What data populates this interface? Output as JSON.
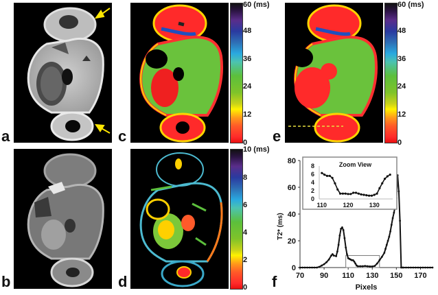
{
  "figure": {
    "panels": [
      {
        "label": "a",
        "type": "grayscale-mri",
        "annotation": "two yellow arrows"
      },
      {
        "label": "b",
        "type": "grayscale-mri"
      },
      {
        "label": "c",
        "type": "t2star-map",
        "colorbar": "cb60"
      },
      {
        "label": "d",
        "type": "t2star-map",
        "colorbar": "cb10"
      },
      {
        "label": "e",
        "type": "t2star-map",
        "colorbar": "cb60",
        "annotation": "dashed profile line"
      },
      {
        "label": "f",
        "type": "line-plot"
      }
    ],
    "colorbars": {
      "cb60": {
        "unit": "(ms)",
        "ticks": [
          "60 (ms)",
          "48",
          "36",
          "24",
          "12",
          "0"
        ]
      },
      "cb10": {
        "unit": "(ms)",
        "ticks": [
          "10 (ms)",
          "8",
          "6",
          "4",
          "2",
          "0"
        ]
      }
    },
    "colors": {
      "arrow": "#ffe600",
      "profile_line": "#e8e040"
    }
  },
  "chart_data": [
    {
      "type": "line",
      "title": "",
      "xlabel": "Pixels",
      "ylabel": "T2* (ms)",
      "xlim": [
        70,
        180
      ],
      "ylim": [
        0,
        80
      ],
      "xticks": [
        70,
        90,
        110,
        130,
        150,
        170
      ],
      "yticks": [
        0,
        20,
        40,
        60,
        80
      ],
      "grid": false,
      "markers": true,
      "zoom_box": {
        "x": [
          108,
          136
        ],
        "y": [
          0,
          9
        ]
      },
      "x": [
        70,
        72,
        74,
        76,
        78,
        80,
        82,
        84,
        86,
        88,
        90,
        92,
        94,
        96,
        97,
        98,
        100,
        101,
        102,
        103,
        104,
        105,
        106,
        107,
        108,
        109,
        110,
        111,
        112,
        113,
        114,
        115,
        116,
        117,
        118,
        120,
        122,
        124,
        126,
        128,
        130,
        132,
        134,
        136,
        138,
        140,
        141,
        142,
        143,
        144,
        145,
        146,
        147,
        148,
        149,
        150,
        151,
        152,
        153,
        154,
        155,
        156,
        158,
        160,
        162,
        164,
        166,
        168,
        170,
        172,
        174,
        176,
        178,
        180
      ],
      "y": [
        0,
        0,
        0,
        0,
        0,
        0,
        0,
        0,
        0.5,
        1.5,
        2.5,
        4,
        6,
        9,
        10,
        9,
        8.5,
        12,
        17,
        24,
        29,
        30,
        28,
        22,
        15,
        10,
        7,
        6.5,
        6,
        5.5,
        5.5,
        4.5,
        3,
        1.5,
        1,
        1,
        1,
        1.2,
        1,
        0.8,
        0.8,
        1.2,
        3,
        5.5,
        8,
        11,
        14,
        17,
        20,
        23,
        27,
        32,
        37,
        41,
        46,
        52,
        69,
        57,
        35,
        0,
        0,
        0,
        0,
        0,
        0,
        0,
        0,
        0,
        0,
        0,
        0,
        0,
        0,
        0
      ]
    },
    {
      "type": "line",
      "title": "Zoom View",
      "xlabel": "",
      "ylabel": "",
      "xlim": [
        109,
        137
      ],
      "ylim": [
        0,
        8
      ],
      "xticks": [
        110,
        120,
        130
      ],
      "yticks": [
        0,
        2,
        4,
        6,
        8
      ],
      "grid": false,
      "markers": true,
      "x": [
        110,
        111,
        112,
        113,
        114,
        115,
        116,
        117,
        118,
        119,
        120,
        121,
        122,
        123,
        124,
        125,
        126,
        127,
        128,
        129,
        130,
        131,
        132,
        133,
        134,
        135,
        136
      ],
      "y": [
        6.3,
        5.9,
        5.6,
        5.6,
        5.1,
        3.8,
        2.3,
        1.3,
        1.3,
        1.3,
        1.2,
        1.2,
        1.5,
        1.5,
        1.3,
        1.1,
        1.0,
        0.9,
        0.8,
        0.8,
        1.0,
        1.3,
        2.6,
        3.8,
        4.9,
        5.5,
        5.9
      ]
    }
  ]
}
